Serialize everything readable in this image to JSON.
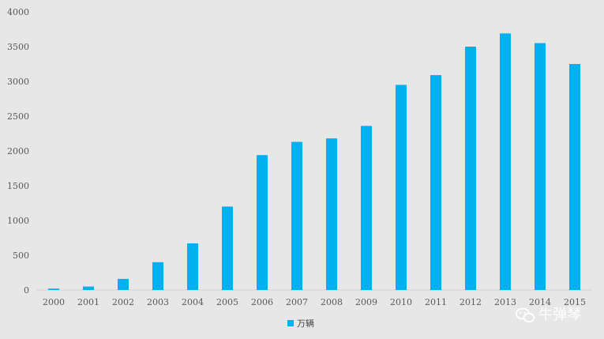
{
  "chart_data": {
    "type": "bar",
    "title": "",
    "xlabel": "",
    "ylabel": "",
    "categories": [
      "2000",
      "2001",
      "2002",
      "2003",
      "2004",
      "2005",
      "2006",
      "2007",
      "2008",
      "2009",
      "2010",
      "2011",
      "2012",
      "2013",
      "2014",
      "2015"
    ],
    "series": [
      {
        "name": "万辆",
        "color": "#00b0f0",
        "values": [
          20,
          50,
          160,
          400,
          670,
          1200,
          1940,
          2130,
          2180,
          2360,
          2950,
          3090,
          3500,
          3690,
          3550,
          3250
        ]
      }
    ],
    "yticks": [
      "0",
      "500",
      "1000",
      "1500",
      "2000",
      "2500",
      "3000",
      "3500",
      "4000"
    ],
    "ylim": [
      0,
      4000
    ],
    "grid": false,
    "legend": "bottom-center"
  },
  "watermark": {
    "text": "牛弹琴",
    "icon": "wechat-icon"
  }
}
